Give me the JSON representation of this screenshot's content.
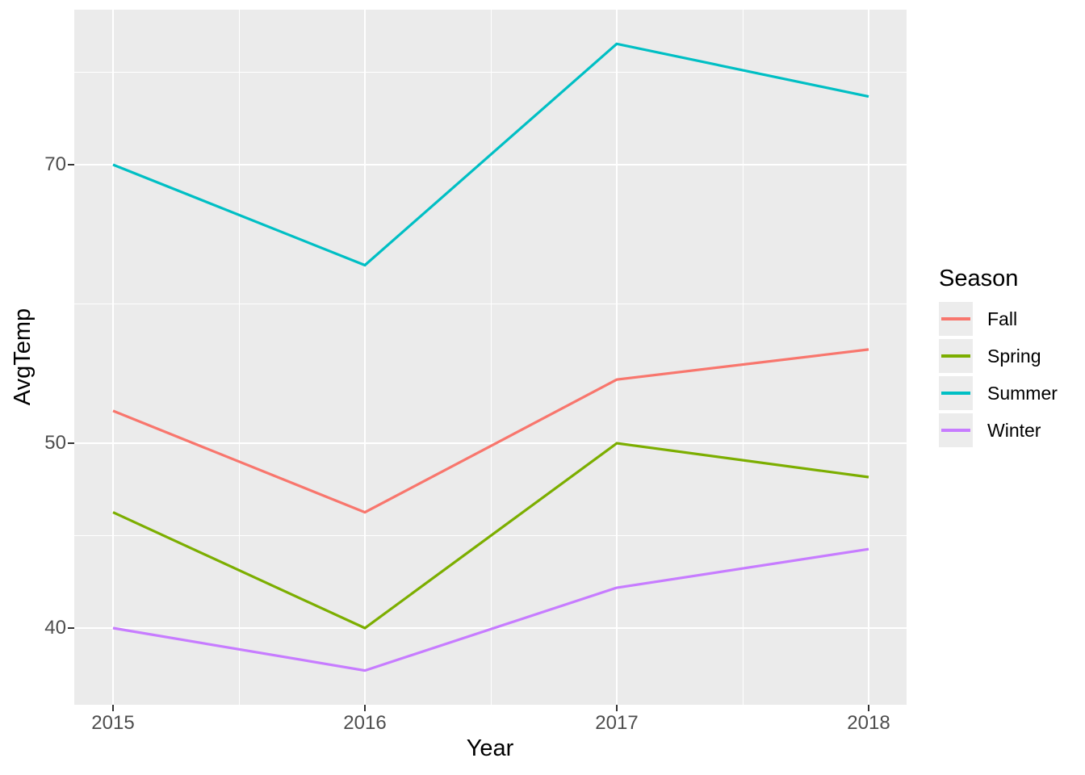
{
  "figure": {
    "background": "#FFFFFF",
    "panel_background": "#EBEBEB",
    "gridline_color": "#FFFFFF",
    "tick_text_color": "#4D4D4D"
  },
  "chart_data": {
    "type": "line",
    "title": "",
    "xlabel": "Year",
    "ylabel": "AvgTemp",
    "x": [
      2015,
      2016,
      2017,
      2018
    ],
    "x_tick_labels": [
      "2015",
      "2016",
      "2017",
      "2018"
    ],
    "series": [
      {
        "name": "Fall",
        "color": "#F8766D",
        "values": [
          52,
          46,
          54,
          56
        ]
      },
      {
        "name": "Spring",
        "color": "#7CAE00",
        "values": [
          46,
          40,
          50,
          48
        ]
      },
      {
        "name": "Summer",
        "color": "#00BFC4",
        "values": [
          70,
          62,
          81,
          76
        ]
      },
      {
        "name": "Winter",
        "color": "#C77CFF",
        "values": [
          40,
          38,
          42,
          44
        ]
      }
    ],
    "y_axis": {
      "scale": "log",
      "tick_values": [
        70,
        50,
        40
      ],
      "tick_labels": [
        "70",
        "50",
        "40"
      ],
      "range_approx": [
        36.5,
        84.4
      ],
      "grid": "major+minor"
    },
    "legend": {
      "title": "Season",
      "position": "right",
      "entries": [
        "Fall",
        "Spring",
        "Summer",
        "Winter"
      ]
    }
  }
}
